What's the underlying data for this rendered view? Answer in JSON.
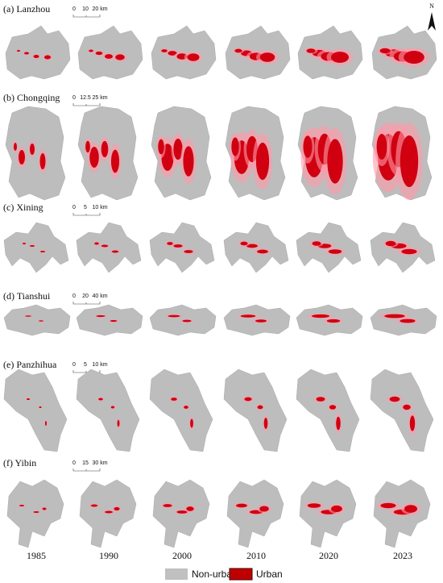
{
  "north": "N",
  "panels": [
    {
      "label": "(a) Lanzhou",
      "scale": [
        "0",
        "10",
        "20 km"
      ]
    },
    {
      "label": "(b) Chongqing",
      "scale": [
        "0",
        "12.5",
        "25 km"
      ]
    },
    {
      "label": "(c) Xining",
      "scale": [
        "0",
        "5",
        "10 km"
      ]
    },
    {
      "label": "(d) Tianshui",
      "scale": [
        "0",
        "20",
        "40 km"
      ]
    },
    {
      "label": "(e) Panzhihua",
      "scale": [
        "0",
        "5",
        "10 km"
      ]
    },
    {
      "label": "(f) Yibin",
      "scale": [
        "0",
        "15",
        "30 km"
      ]
    }
  ],
  "years": [
    "1985",
    "1990",
    "2000",
    "2010",
    "2020",
    "2023"
  ],
  "legend": [
    "Non-urban",
    "Urban"
  ]
}
